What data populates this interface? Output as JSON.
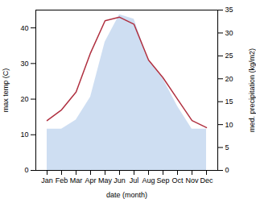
{
  "chart_data": {
    "type": "line",
    "xlabel": "date (month)",
    "ylabel": "max temp (C)",
    "y2label": "med. precipitation (kg/m2)",
    "categories": [
      "Jan",
      "Feb",
      "Mar",
      "Apr",
      "May",
      "Jun",
      "Jul",
      "Aug",
      "Sep",
      "Oct",
      "Nov",
      "Dec"
    ],
    "series": [
      {
        "type": "area",
        "axis": "y2",
        "color": "#c5d8f0",
        "values": [
          9,
          9,
          11,
          16,
          28,
          34,
          33,
          24,
          20,
          14,
          9,
          9
        ]
      },
      {
        "type": "line",
        "color": "#b03040",
        "values": [
          14,
          17,
          22,
          33,
          42,
          43,
          41,
          31,
          26,
          20,
          14,
          12
        ]
      }
    ],
    "ylim": [
      0,
      45
    ],
    "yticks": [
      0,
      10,
      20,
      30,
      40
    ],
    "y2lim": [
      0,
      35
    ],
    "y2ticks": [
      0,
      5,
      10,
      15,
      20,
      25,
      30,
      35
    ]
  }
}
